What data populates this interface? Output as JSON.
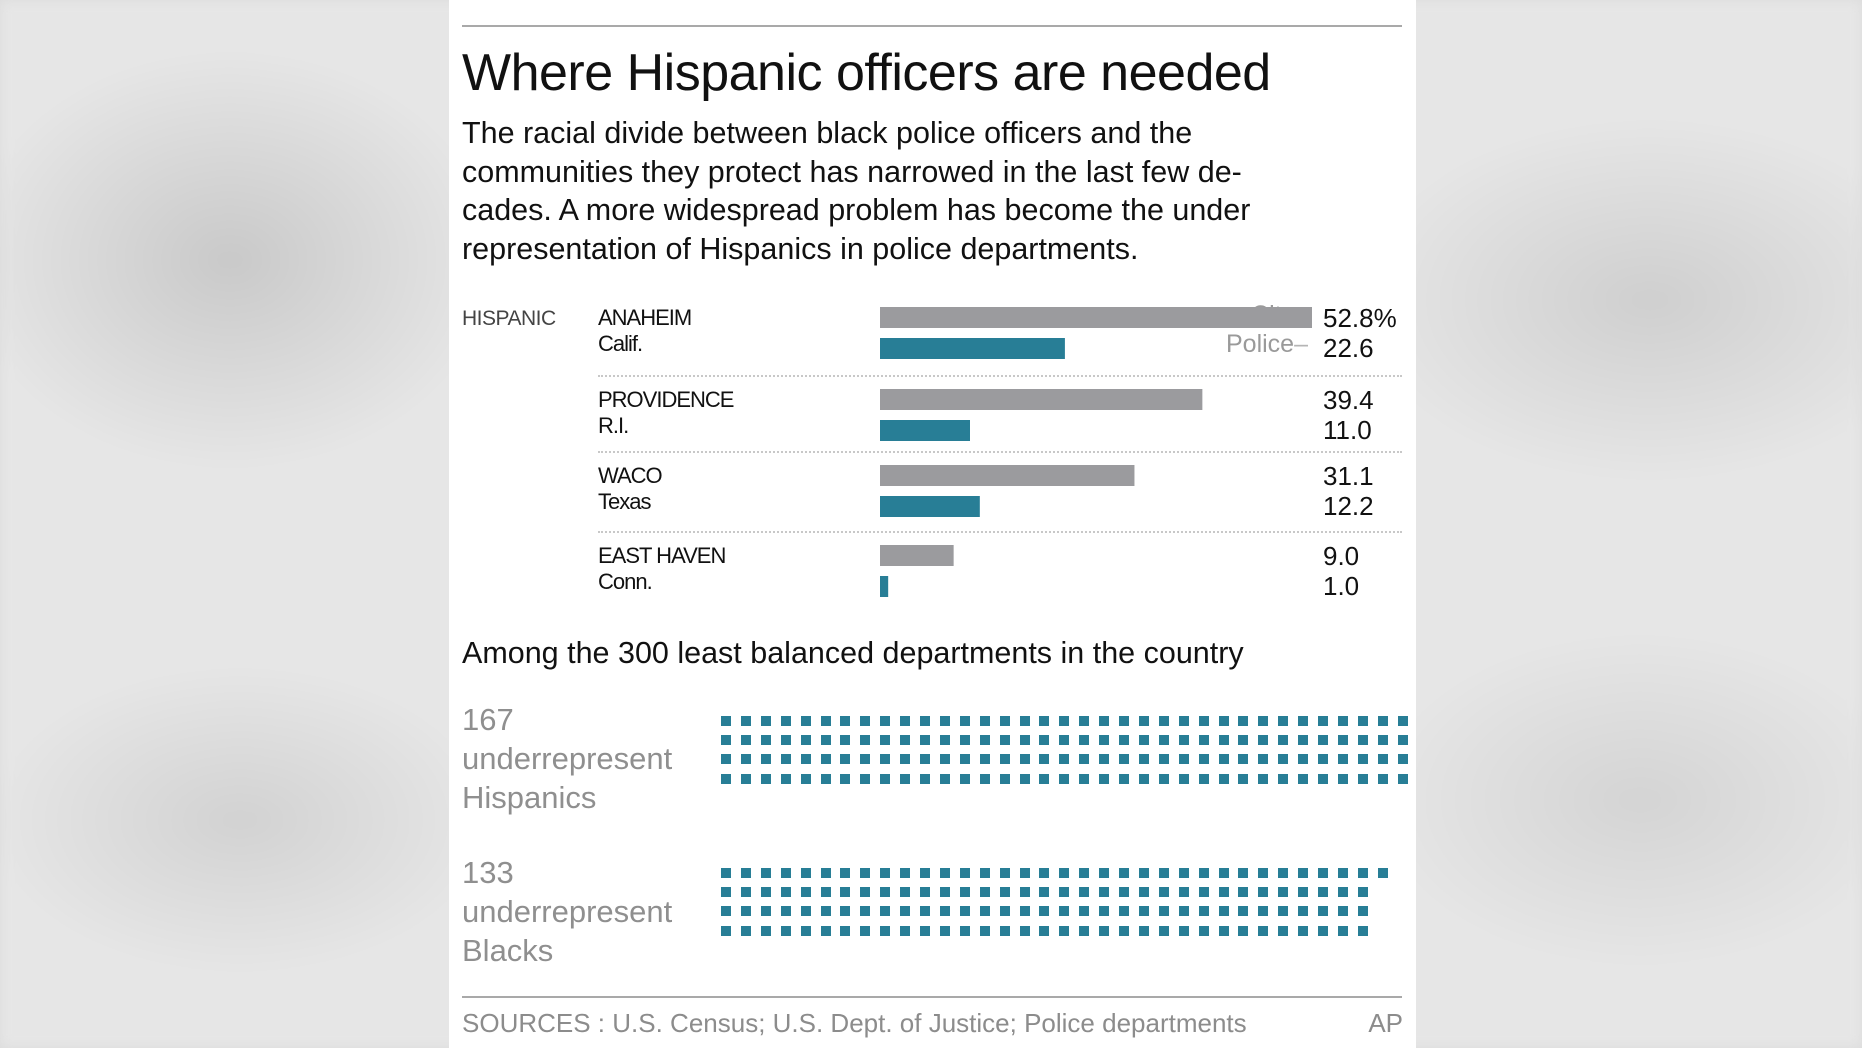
{
  "title": "Where Hispanic officers are needed",
  "subtitle_lines": [
    "The racial divide between black police officers and the",
    "communities they protect has narrowed in the last few de-",
    "cades.  A more widespread problem has become the under",
    "representation of Hispanics in police departments."
  ],
  "colors": {
    "city": "#9b9b9e",
    "police": "#287e96",
    "dot": "#287e96",
    "muted_text": "#8f8f8f"
  },
  "chart_data": [
    {
      "type": "bar",
      "orientation": "horizontal",
      "category_label": "HISPANIC",
      "series_names": [
        "City",
        "Police"
      ],
      "value_unit_suffix": "%",
      "xlim": [
        0,
        52.8
      ],
      "rows": [
        {
          "city": "ANAHEIM",
          "state": "Calif.",
          "city_value": 52.8,
          "police_value": 22.6,
          "city_label": "52.8%",
          "police_label": "22.6"
        },
        {
          "city": "PROVIDENCE",
          "state": "R.I.",
          "city_value": 39.4,
          "police_value": 11.0,
          "city_label": "39.4",
          "police_label": "11.0"
        },
        {
          "city": "WACO",
          "state": "Texas",
          "city_value": 31.1,
          "police_value": 12.2,
          "city_label": "31.1",
          "police_label": "12.2"
        },
        {
          "city": "EAST HAVEN",
          "state": "Conn.",
          "city_value": 9.0,
          "police_value": 1.0,
          "city_label": "9.0",
          "police_label": "1.0"
        }
      ]
    },
    {
      "type": "pictograph",
      "title": "Among the 300 least balanced departments in the country",
      "groups": [
        {
          "count": 167,
          "count_label": "167",
          "line2": "underrepresent",
          "line3": "Hispanics"
        },
        {
          "count": 133,
          "count_label": "133",
          "line2": "underrepresent",
          "line3": "Blacks"
        }
      ]
    }
  ],
  "sources": "SOURCES : U.S. Census; U.S. Dept. of Justice; Police departments",
  "credit": "AP"
}
